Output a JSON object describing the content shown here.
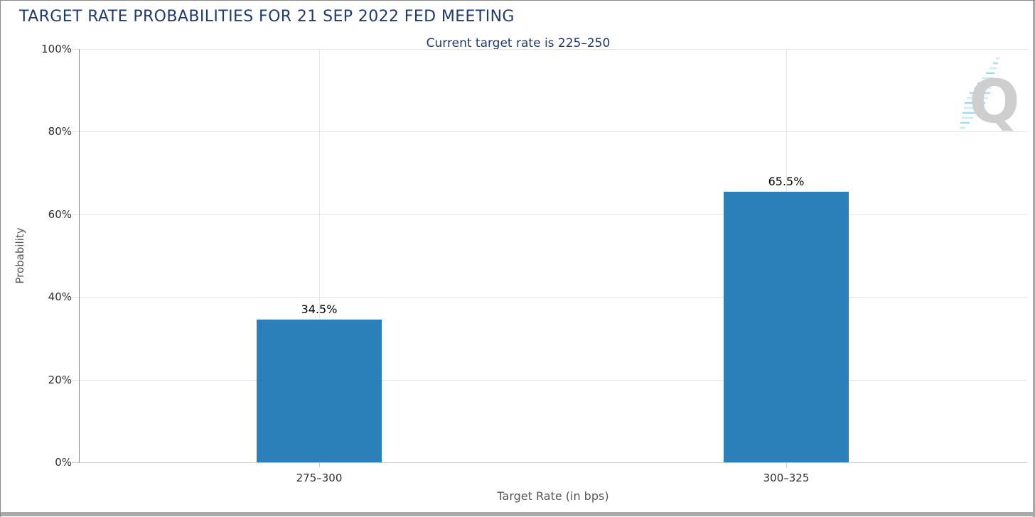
{
  "logo": {
    "letter": "Q"
  },
  "frame": {
    "border_color": "#8a8a8a",
    "bottom_bar_color": "#a9a9a9"
  },
  "chart_data": {
    "type": "bar",
    "title": "TARGET RATE PROBABILITIES FOR 21 SEP 2022 FED MEETING",
    "subtitle": "Current target rate is 225–250",
    "categories": [
      "275–300",
      "300–325"
    ],
    "values": [
      34.5,
      65.5
    ],
    "value_labels": [
      "34.5%",
      "65.5%"
    ],
    "xlabel": "Target Rate (in bps)",
    "ylabel": "Probability",
    "ylim": [
      0,
      100
    ],
    "ytick_values": [
      0,
      20,
      40,
      60,
      80,
      100
    ],
    "ytick_labels": [
      "0%",
      "20%",
      "40%",
      "60%",
      "80%",
      "100%"
    ],
    "grid": true,
    "legend": false,
    "colors": {
      "bar": "#2c80b9",
      "title": "#1e3a6e",
      "subtitle": "#1e3a6e",
      "axis_title": "#555555",
      "tick_label": "#2e2e2e",
      "gridline": "#e4e4e4",
      "axis_line": "#8a8a8a",
      "baseline": "#c9c9c9",
      "data_label": "#000000",
      "logo_gray": "#c9c9c9",
      "logo_blue": "#9bdaf2"
    }
  }
}
